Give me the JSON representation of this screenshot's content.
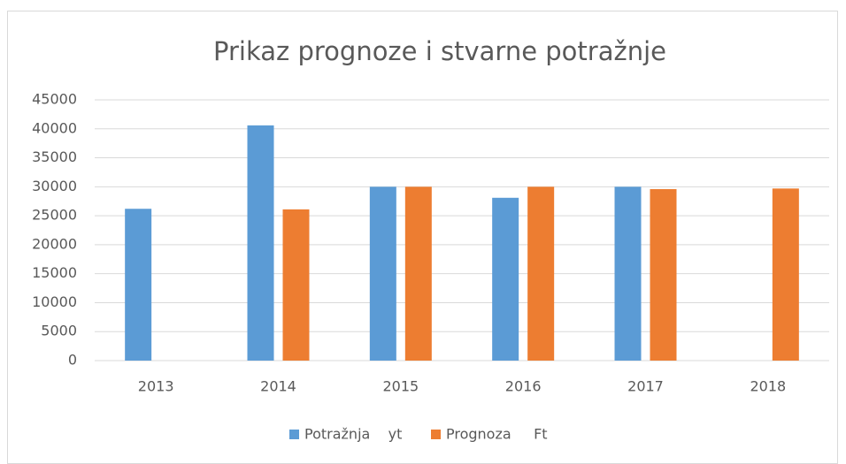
{
  "chart_data": {
    "type": "bar",
    "title": "Prikaz prognoze i stvarne potražnje",
    "categories": [
      "2013",
      "2014",
      "2015",
      "2016",
      "2017",
      "2018"
    ],
    "series": [
      {
        "name": "Potražnja    yt",
        "color": "#5b9bd5",
        "values": [
          26200,
          40600,
          30000,
          28100,
          30000,
          null
        ]
      },
      {
        "name": "Prognoza     Ft",
        "color": "#ed7d31",
        "values": [
          null,
          26100,
          30000,
          30000,
          29600,
          29700
        ]
      }
    ],
    "ylim": [
      0,
      45000
    ],
    "yticks": [
      0,
      5000,
      10000,
      15000,
      20000,
      25000,
      30000,
      35000,
      40000,
      45000
    ],
    "grid": true,
    "legend": "bottom"
  }
}
